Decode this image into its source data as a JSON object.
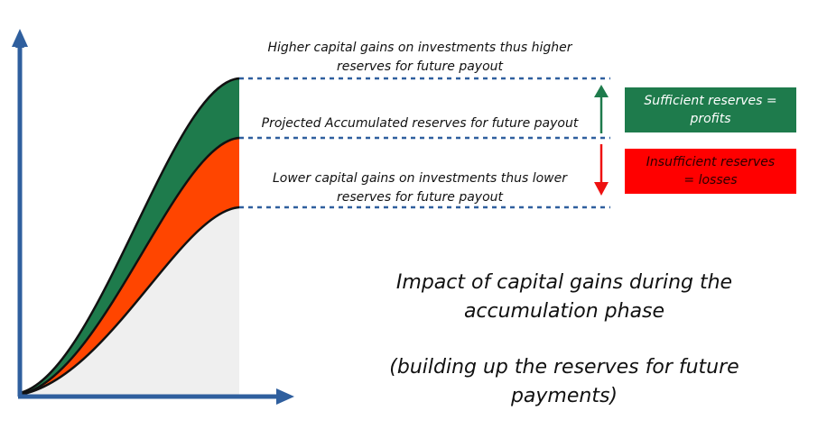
{
  "labels": {
    "higher_line1": "Higher capital gains on investments thus higher",
    "higher_line2": "reserves for future payout",
    "projected": "Projected Accumulated reserves for future payout",
    "lower_line1": "Lower capital gains on investments thus lower",
    "lower_line2": "reserves for future payout"
  },
  "boxes": {
    "sufficient_line1": "Sufficient reserves =",
    "sufficient_line2": "profits",
    "insufficient_line1": "Insufficient reserves",
    "insufficient_line2": "= losses"
  },
  "caption": {
    "title_line1": "Impact of capital gains during the",
    "title_line2": "accumulation phase",
    "subtitle_line1": "(building up the reserves for future",
    "subtitle_line2": "payments)"
  },
  "colors": {
    "axis": "#2f5f9e",
    "upper_band": "#1e7b4c",
    "lower_band": "#ff4500",
    "base_fill": "#efefef",
    "dashed_line": "#2f5f9e",
    "up_arrow": "#1e7b4c",
    "down_arrow": "#ee1111",
    "box_sufficient": "#1e7b4c",
    "box_insufficient": "#ff0000"
  }
}
